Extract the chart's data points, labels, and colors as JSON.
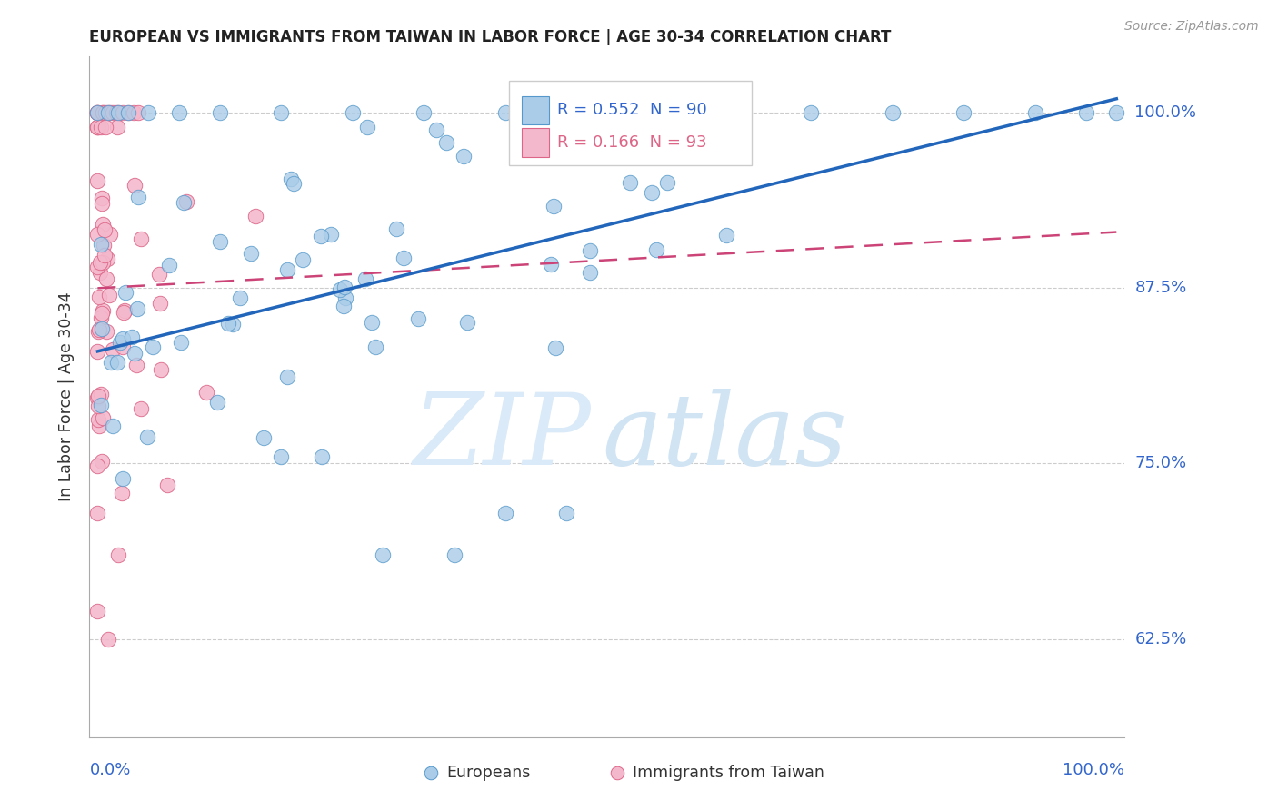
{
  "title": "EUROPEAN VS IMMIGRANTS FROM TAIWAN IN LABOR FORCE | AGE 30-34 CORRELATION CHART",
  "source": "Source: ZipAtlas.com",
  "ylabel": "In Labor Force | Age 30-34",
  "ytick_labels": [
    "100.0%",
    "87.5%",
    "75.0%",
    "62.5%"
  ],
  "ytick_values": [
    1.0,
    0.875,
    0.75,
    0.625
  ],
  "xlim": [
    0.0,
    1.0
  ],
  "ylim": [
    0.555,
    1.04
  ],
  "blue_R": 0.552,
  "blue_N": 90,
  "pink_R": 0.166,
  "pink_N": 93,
  "blue_color": "#aacce8",
  "pink_color": "#f4b8cc",
  "blue_edge_color": "#5599cc",
  "pink_edge_color": "#dd6688",
  "blue_line_color": "#2266bb",
  "pink_line_color": "#cc4477",
  "grid_color": "#cccccc",
  "title_color": "#222222",
  "axis_label_color": "#3366cc",
  "watermark_color": "#daeaf8",
  "legend_blue_label": "Europeans",
  "legend_pink_label": "Immigrants from Taiwan"
}
